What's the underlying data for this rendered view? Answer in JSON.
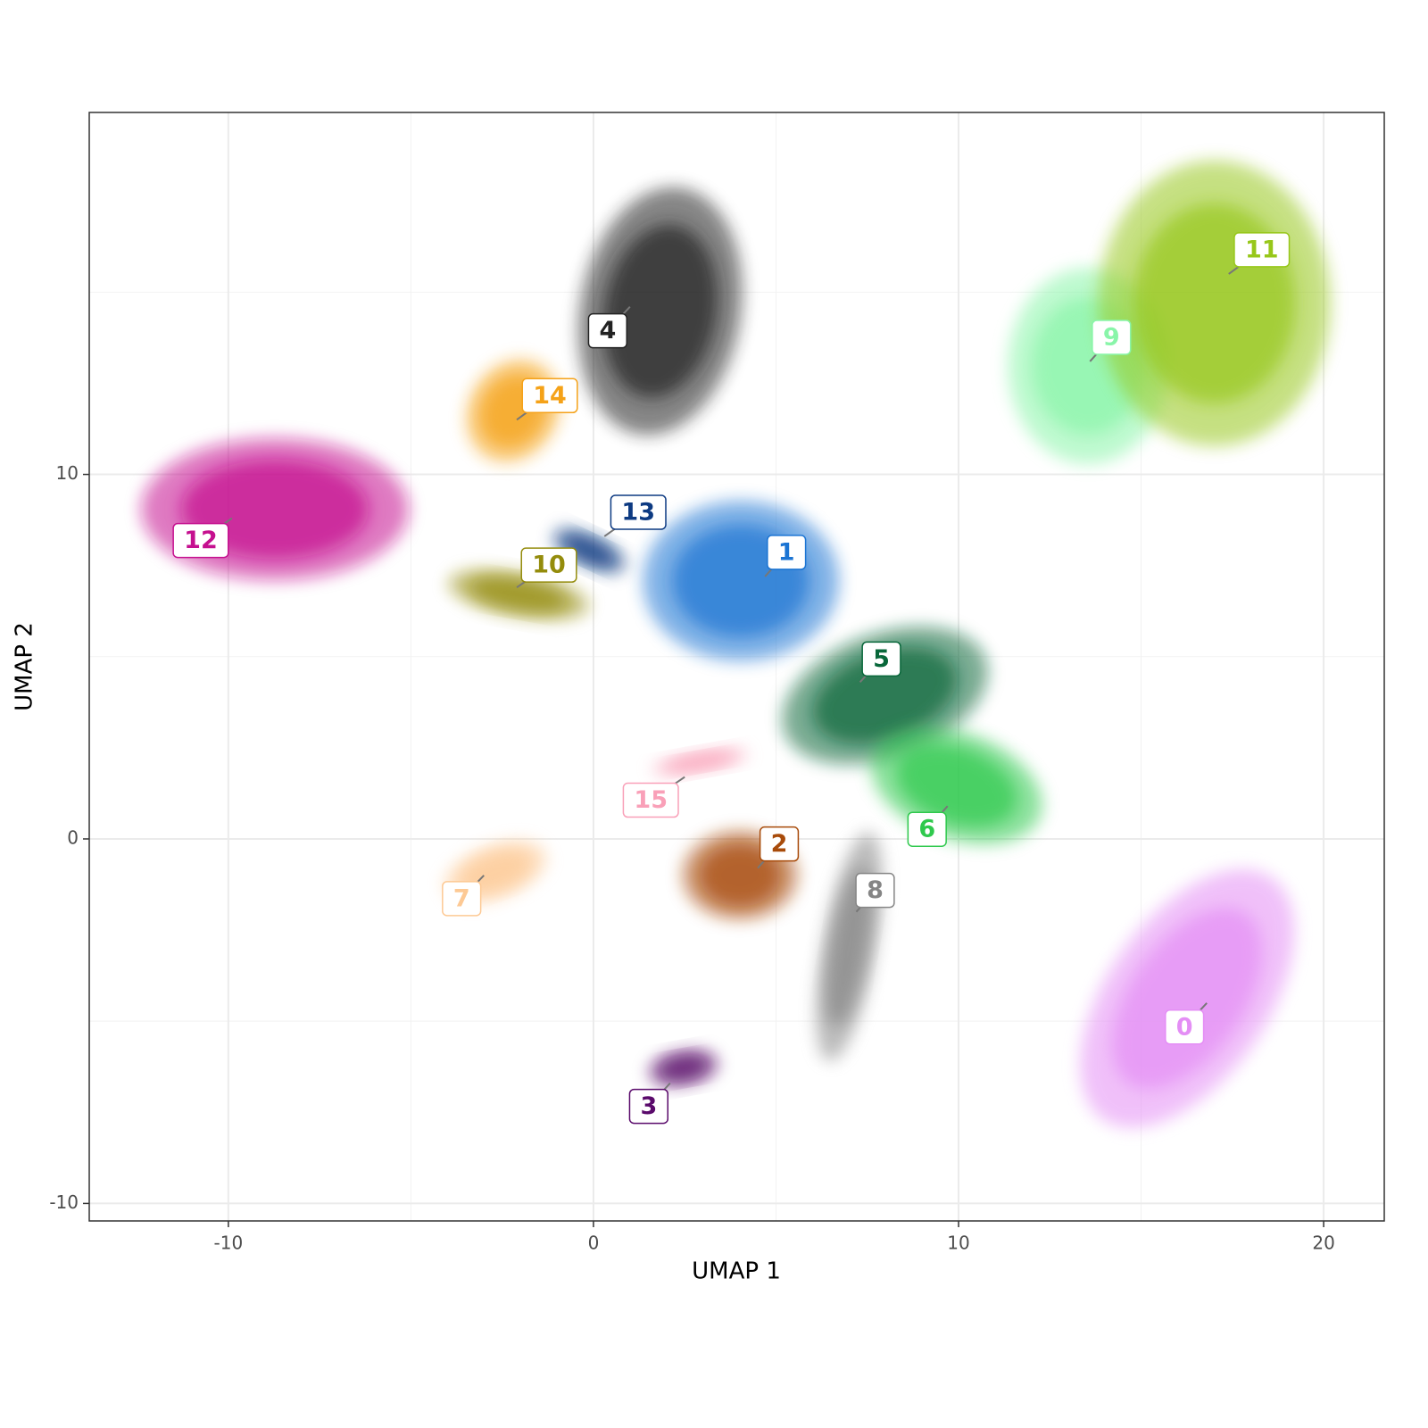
{
  "chart_data": {
    "type": "scatter",
    "xlabel": "UMAP 1",
    "ylabel": "UMAP 2",
    "xlim": [
      -13.81,
      21.66
    ],
    "ylim": [
      -10.48,
      19.93
    ],
    "xticks": [
      -10,
      0,
      10,
      20
    ],
    "yticks": [
      -10,
      0,
      10
    ],
    "grid": true,
    "series": [
      {
        "name": "0",
        "color": "#e48ef5",
        "x": [
          16.8
        ],
        "y": [
          -4.5
        ]
      },
      {
        "name": "1",
        "color": "#1b74d3",
        "x": [
          4.7
        ],
        "y": [
          7.2
        ]
      },
      {
        "name": "2",
        "color": "#a84b0a",
        "x": [
          4.5
        ],
        "y": [
          -0.8
        ]
      },
      {
        "name": "3",
        "color": "#5a0a6b",
        "x": [
          2.1
        ],
        "y": [
          -6.7
        ]
      },
      {
        "name": "4",
        "color": "#222222",
        "x": [
          1.0
        ],
        "y": [
          14.6
        ]
      },
      {
        "name": "5",
        "color": "#08673a",
        "x": [
          7.3
        ],
        "y": [
          4.3
        ]
      },
      {
        "name": "6",
        "color": "#2fc94d",
        "x": [
          9.7
        ],
        "y": [
          0.9
        ]
      },
      {
        "name": "7",
        "color": "#fdc994",
        "x": [
          -3.0
        ],
        "y": [
          -1.0
        ]
      },
      {
        "name": "8",
        "color": "#858585",
        "x": [
          7.2
        ],
        "y": [
          -2.0
        ]
      },
      {
        "name": "9",
        "color": "#89f5a9",
        "x": [
          13.6
        ],
        "y": [
          13.1
        ]
      },
      {
        "name": "10",
        "color": "#948c0c",
        "x": [
          -2.1
        ],
        "y": [
          6.9
        ]
      },
      {
        "name": "11",
        "color": "#97c71a",
        "x": [
          17.4
        ],
        "y": [
          15.5
        ]
      },
      {
        "name": "12",
        "color": "#c5108f",
        "x": [
          -9.9
        ],
        "y": [
          8.8
        ]
      },
      {
        "name": "13",
        "color": "#0d3a82",
        "x": [
          0.3
        ],
        "y": [
          8.3
        ]
      },
      {
        "name": "14",
        "color": "#f5a218",
        "x": [
          -2.1
        ],
        "y": [
          11.5
        ]
      },
      {
        "name": "15",
        "color": "#f9a0b8",
        "x": [
          2.5
        ],
        "y": [
          1.7
        ]
      }
    ]
  }
}
